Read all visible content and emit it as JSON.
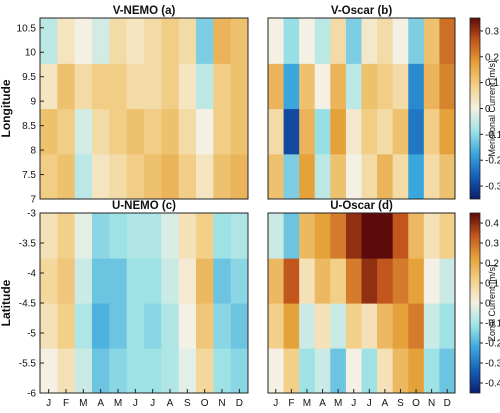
{
  "chart_data": [
    {
      "type": "heatmap",
      "title": "V-NEMO (a)",
      "ylabel": "Longitude",
      "y_ticks": [
        "7",
        "7.5",
        "8",
        "8.5",
        "9",
        "9.5",
        "10",
        "10.5"
      ],
      "ylim": [
        7,
        10.7
      ],
      "x_ticks": [],
      "colorbar_ref": 0,
      "x": [
        "J",
        "F",
        "M",
        "A",
        "M",
        "J",
        "J",
        "A",
        "S",
        "O",
        "N",
        "D"
      ],
      "y": [
        7.25,
        8.25,
        9.25,
        10.25
      ],
      "z": [
        [
          0.08,
          0.1,
          -0.05,
          0.03,
          0.05,
          0.08,
          0.1,
          0.12,
          0.08,
          0.03,
          0.1,
          0.12
        ],
        [
          0.1,
          0.08,
          -0.03,
          0.05,
          0.08,
          0.1,
          0.08,
          0.1,
          0.05,
          0.0,
          0.08,
          0.1
        ],
        [
          0.03,
          0.1,
          0.05,
          0.08,
          0.08,
          0.05,
          0.05,
          0.08,
          0.03,
          -0.05,
          0.08,
          0.1
        ],
        [
          -0.05,
          0.03,
          0.0,
          -0.03,
          0.05,
          0.03,
          0.05,
          0.08,
          0.05,
          -0.1,
          0.12,
          0.1
        ]
      ]
    },
    {
      "type": "heatmap",
      "title": "V-Oscar (b)",
      "ylabel": "",
      "y_ticks": [],
      "ylim": [
        7,
        10.7
      ],
      "x_ticks": [],
      "colorbar_ref": 0,
      "x": [
        "J",
        "F",
        "M",
        "A",
        "M",
        "J",
        "J",
        "A",
        "S",
        "O",
        "N",
        "D"
      ],
      "y": [
        7.25,
        8.25,
        9.25,
        10.25
      ],
      "z": [
        [
          0.1,
          -0.1,
          0.15,
          -0.05,
          0.1,
          0.0,
          0.05,
          0.12,
          0.05,
          -0.15,
          0.05,
          0.1
        ],
        [
          0.05,
          -0.25,
          0.12,
          -0.08,
          0.15,
          0.02,
          0.08,
          0.05,
          0.1,
          -0.2,
          0.08,
          0.15
        ],
        [
          0.12,
          -0.15,
          0.1,
          0.0,
          0.12,
          -0.05,
          0.1,
          0.08,
          0.05,
          -0.18,
          0.12,
          0.18
        ],
        [
          0.0,
          -0.08,
          0.0,
          -0.05,
          0.05,
          -0.1,
          0.02,
          0.05,
          0.0,
          -0.1,
          0.1,
          0.2
        ]
      ]
    },
    {
      "type": "heatmap",
      "title": "U-NEMO (c)",
      "ylabel": "Latitude",
      "y_ticks": [
        "-6",
        "-5.5",
        "-5",
        "-4.5",
        "-4",
        "-3.5",
        "-3"
      ],
      "ylim": [
        -6,
        -3
      ],
      "x_ticks": [
        "J",
        "F",
        "M",
        "A",
        "M",
        "J",
        "J",
        "A",
        "S",
        "O",
        "N",
        "D"
      ],
      "colorbar_ref": 1,
      "x": [
        "J",
        "F",
        "M",
        "A",
        "M",
        "J",
        "J",
        "A",
        "S",
        "O",
        "N",
        "D"
      ],
      "y": [
        -5.75,
        -4.75,
        -3.75,
        -3.25
      ],
      "z": [
        [
          0.0,
          0.05,
          -0.05,
          -0.15,
          -0.12,
          -0.1,
          -0.1,
          -0.08,
          -0.02,
          0.08,
          -0.1,
          -0.12
        ],
        [
          0.05,
          0.1,
          -0.08,
          -0.18,
          -0.15,
          -0.1,
          -0.12,
          -0.08,
          0.0,
          0.12,
          -0.12,
          -0.15
        ],
        [
          0.08,
          0.12,
          -0.05,
          -0.15,
          -0.15,
          -0.1,
          -0.1,
          -0.05,
          0.02,
          0.15,
          -0.15,
          -0.12
        ],
        [
          0.05,
          0.1,
          -0.02,
          -0.12,
          -0.1,
          -0.08,
          -0.08,
          -0.03,
          0.05,
          0.1,
          -0.1,
          -0.08
        ]
      ]
    },
    {
      "type": "heatmap",
      "title": "U-Oscar (d)",
      "ylabel": "",
      "y_ticks": [],
      "ylim": [
        -6,
        -3
      ],
      "x_ticks": [
        "J",
        "F",
        "M",
        "A",
        "M",
        "J",
        "J",
        "A",
        "S",
        "O",
        "N",
        "D"
      ],
      "colorbar_ref": 1,
      "x": [
        "J",
        "F",
        "M",
        "A",
        "M",
        "J",
        "J",
        "A",
        "S",
        "O",
        "N",
        "D"
      ],
      "y": [
        -5.75,
        -4.75,
        -3.75,
        -3.25
      ],
      "z": [
        [
          0.0,
          0.1,
          -0.1,
          -0.05,
          -0.15,
          0.0,
          -0.1,
          0.05,
          0.15,
          0.2,
          -0.1,
          -0.15
        ],
        [
          0.1,
          0.2,
          -0.05,
          0.05,
          -0.05,
          0.1,
          0.05,
          0.15,
          0.2,
          0.25,
          -0.05,
          -0.1
        ],
        [
          0.15,
          0.3,
          0.05,
          0.15,
          0.1,
          0.25,
          0.35,
          0.3,
          0.25,
          0.2,
          0.0,
          -0.05
        ],
        [
          -0.05,
          -0.15,
          0.15,
          0.2,
          0.25,
          0.35,
          0.4,
          0.4,
          0.3,
          0.15,
          0.05,
          0.1
        ]
      ]
    }
  ],
  "colorbars": [
    {
      "label": "Meridional Current [m/s]",
      "ticks": [
        "0.3",
        "0.2",
        "0.1",
        "0",
        "-0.1",
        "-0.2",
        "-0.3"
      ],
      "range": [
        -0.3,
        0.3
      ]
    },
    {
      "label": "Zonal Current [m/s]",
      "ticks": [
        "0.4",
        "0.3",
        "0.2",
        "0.1",
        "0",
        "-0.1",
        "-0.2",
        "-0.3",
        "-0.4"
      ],
      "range": [
        -0.4,
        0.4
      ]
    }
  ],
  "colors": {
    "scale": [
      "#0b1f6e",
      "#1560b8",
      "#3aa6dc",
      "#9fe2e6",
      "#f4f1e4",
      "#f3d08a",
      "#e5a23a",
      "#c2561c",
      "#5c0a0a"
    ]
  }
}
